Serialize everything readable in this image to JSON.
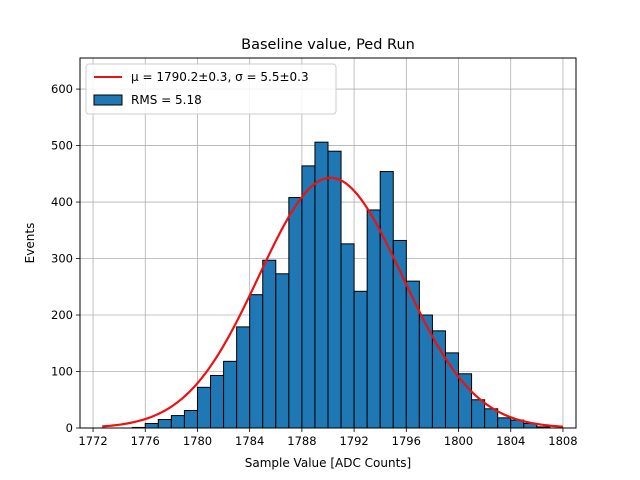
{
  "chart_data": {
    "type": "bar",
    "title": "Baseline value, Ped Run",
    "xlabel": "Sample Value [ADC Counts]",
    "ylabel": "Events",
    "xlim": [
      1771,
      1809
    ],
    "ylim": [
      0,
      655
    ],
    "xticks": [
      1772,
      1776,
      1780,
      1784,
      1788,
      1792,
      1796,
      1800,
      1804,
      1808
    ],
    "yticks": [
      0,
      100,
      200,
      300,
      400,
      500,
      600
    ],
    "grid": true,
    "legend_position": "top-left",
    "bin_width": 1,
    "histogram": {
      "name": "RMS = 5.18",
      "color": "#1f77b4",
      "bins": [
        {
          "x": 1775,
          "value": 1
        },
        {
          "x": 1776,
          "value": 8
        },
        {
          "x": 1777,
          "value": 15
        },
        {
          "x": 1778,
          "value": 22
        },
        {
          "x": 1779,
          "value": 31
        },
        {
          "x": 1780,
          "value": 72
        },
        {
          "x": 1781,
          "value": 93
        },
        {
          "x": 1782,
          "value": 118
        },
        {
          "x": 1783,
          "value": 179
        },
        {
          "x": 1784,
          "value": 236
        },
        {
          "x": 1785,
          "value": 297
        },
        {
          "x": 1786,
          "value": 273
        },
        {
          "x": 1787,
          "value": 408
        },
        {
          "x": 1788,
          "value": 464
        },
        {
          "x": 1789,
          "value": 506
        },
        {
          "x": 1790,
          "value": 490
        },
        {
          "x": 1791,
          "value": 326
        },
        {
          "x": 1792,
          "value": 242
        },
        {
          "x": 1793,
          "value": 386
        },
        {
          "x": 1794,
          "value": 454
        },
        {
          "x": 1795,
          "value": 332
        },
        {
          "x": 1796,
          "value": 260
        },
        {
          "x": 1797,
          "value": 200
        },
        {
          "x": 1798,
          "value": 172
        },
        {
          "x": 1799,
          "value": 133
        },
        {
          "x": 1800,
          "value": 96
        },
        {
          "x": 1801,
          "value": 50
        },
        {
          "x": 1802,
          "value": 34
        },
        {
          "x": 1803,
          "value": 18
        },
        {
          "x": 1804,
          "value": 14
        },
        {
          "x": 1805,
          "value": 8
        },
        {
          "x": 1806,
          "value": 2
        }
      ]
    },
    "fit": {
      "name": "μ = 1790.2±0.3, σ = 5.5±0.3",
      "type": "gaussian",
      "mu": 1790.2,
      "sigma": 5.5,
      "amplitude": 443,
      "x_range": [
        1772.7,
        1808
      ],
      "color": "#ee1111"
    }
  }
}
